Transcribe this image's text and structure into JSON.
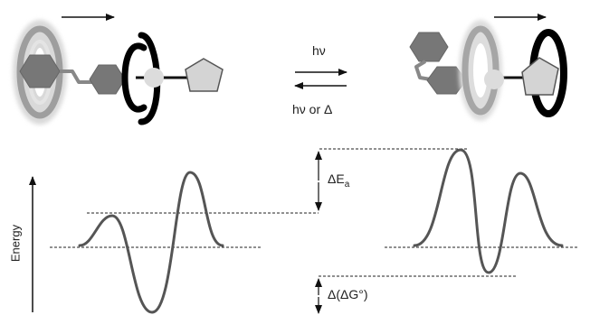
{
  "arrows": {
    "forward_label": "hν",
    "reverse_label": "hν or Δ"
  },
  "energy_axis": {
    "label": "Energy"
  },
  "annotations": {
    "delta_ea": "ΔE",
    "delta_ea_subscript": "a",
    "delta_delta_g": "Δ(ΔG°)"
  },
  "colors": {
    "curve": "#555555",
    "ring_dark": "#111111",
    "ring_grey": "#b0b0b0",
    "hexagon": "#777777",
    "pentagon": "#d4d4d4",
    "sphere": "#dcdcdc"
  }
}
